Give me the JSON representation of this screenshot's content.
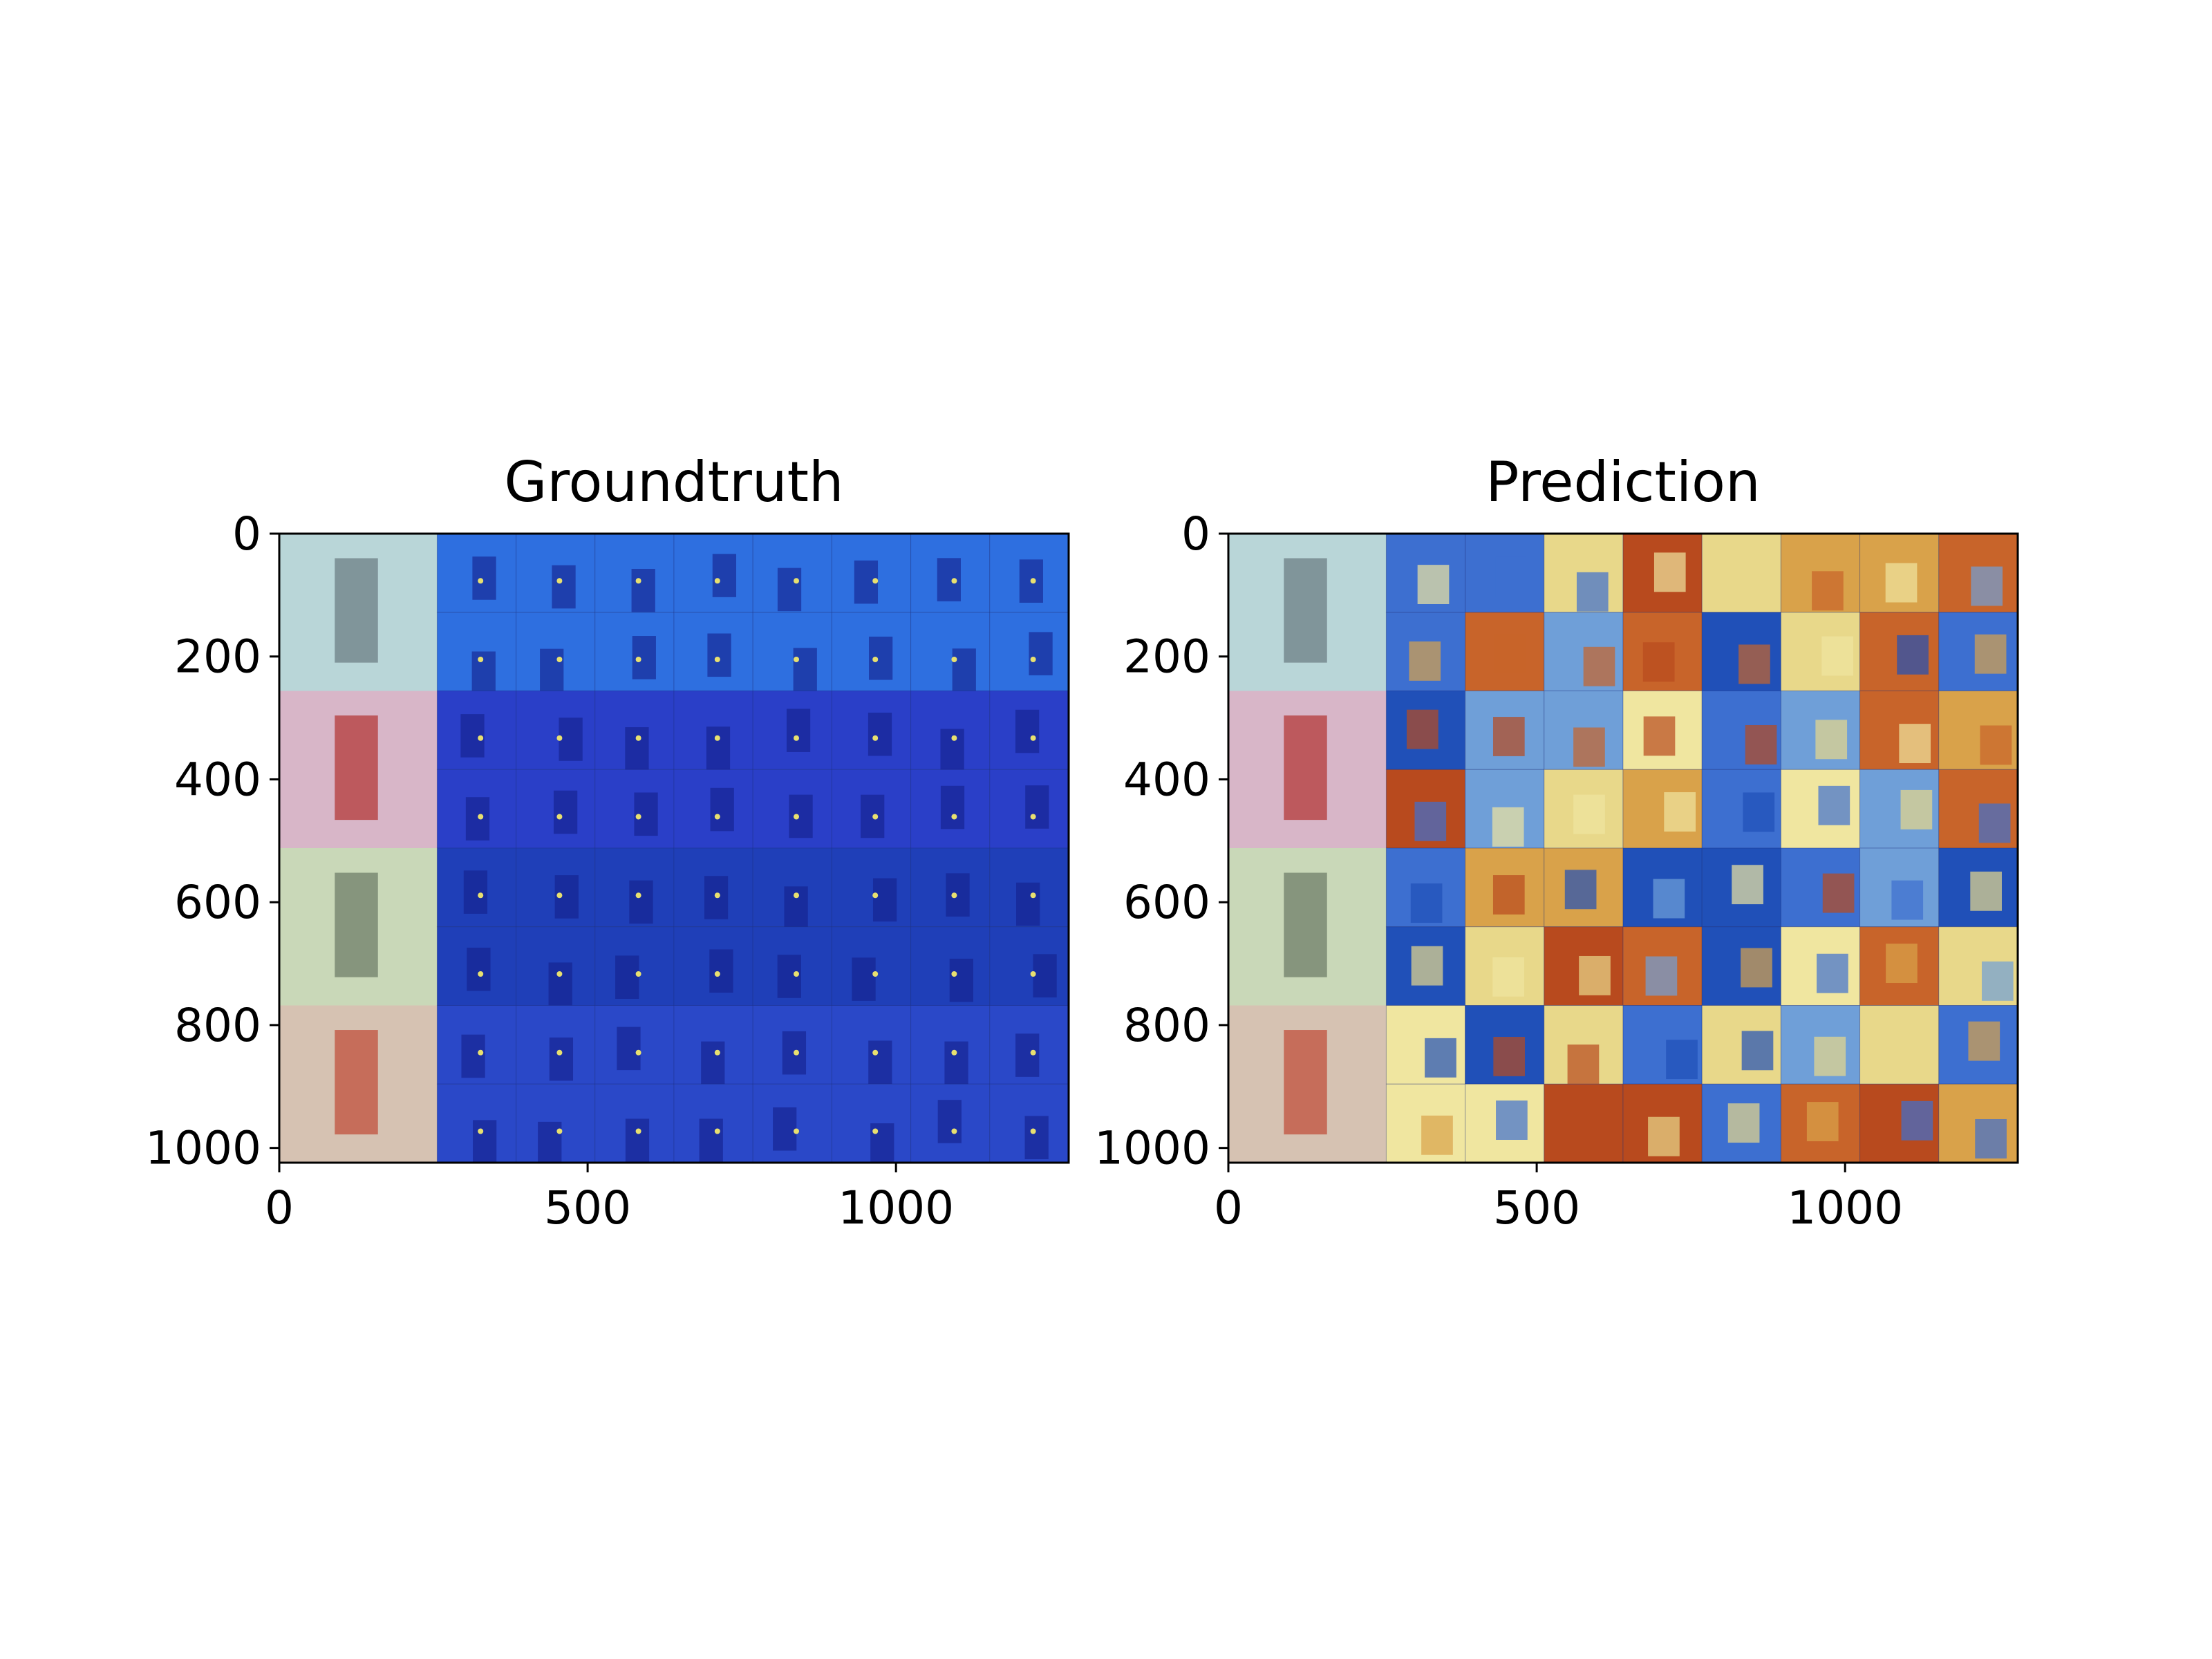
{
  "chart_data": [
    {
      "type": "heatmap",
      "title": "Groundtruth",
      "xlabel": "",
      "ylabel": "",
      "xlim": [
        0,
        1280
      ],
      "ylim": [
        1024,
        0
      ],
      "x_ticks": [
        0,
        500,
        1000
      ],
      "y_ticks": [
        0,
        200,
        400,
        600,
        800,
        1000
      ],
      "x_tick_labels": [
        "0",
        "500",
        "1000"
      ],
      "y_tick_labels": [
        "0",
        "200",
        "400",
        "600",
        "800",
        "1000"
      ],
      "grid": false,
      "legend": "none",
      "rows": 4,
      "thumbnail_columns": 1,
      "heatmap_columns": 8,
      "heatmaps_per_row": 16,
      "overlay_colormap": "jet",
      "row_tints": [
        "#2e6fe0",
        "#2a3fc8",
        "#1f3fb8",
        "#2a48c8"
      ]
    },
    {
      "type": "heatmap",
      "title": "Prediction",
      "xlabel": "",
      "ylabel": "",
      "xlim": [
        0,
        1280
      ],
      "ylim": [
        1024,
        0
      ],
      "x_ticks": [
        0,
        500,
        1000
      ],
      "y_ticks": [
        0,
        200,
        400,
        600,
        800,
        1000
      ],
      "x_tick_labels": [
        "0",
        "500",
        "1000"
      ],
      "y_tick_labels": [
        "0",
        "200",
        "400",
        "600",
        "800",
        "1000"
      ],
      "grid": false,
      "legend": "none",
      "rows": 4,
      "thumbnail_columns": 1,
      "heatmap_columns": 8,
      "heatmaps_per_row": 16,
      "overlay_colormap": "jet",
      "palette": [
        "#e8d88a",
        "#d9a24a",
        "#c8642a",
        "#b84a1e",
        "#6f9fd8",
        "#3d6fd0",
        "#2050b8",
        "#f0e6a0"
      ]
    }
  ]
}
